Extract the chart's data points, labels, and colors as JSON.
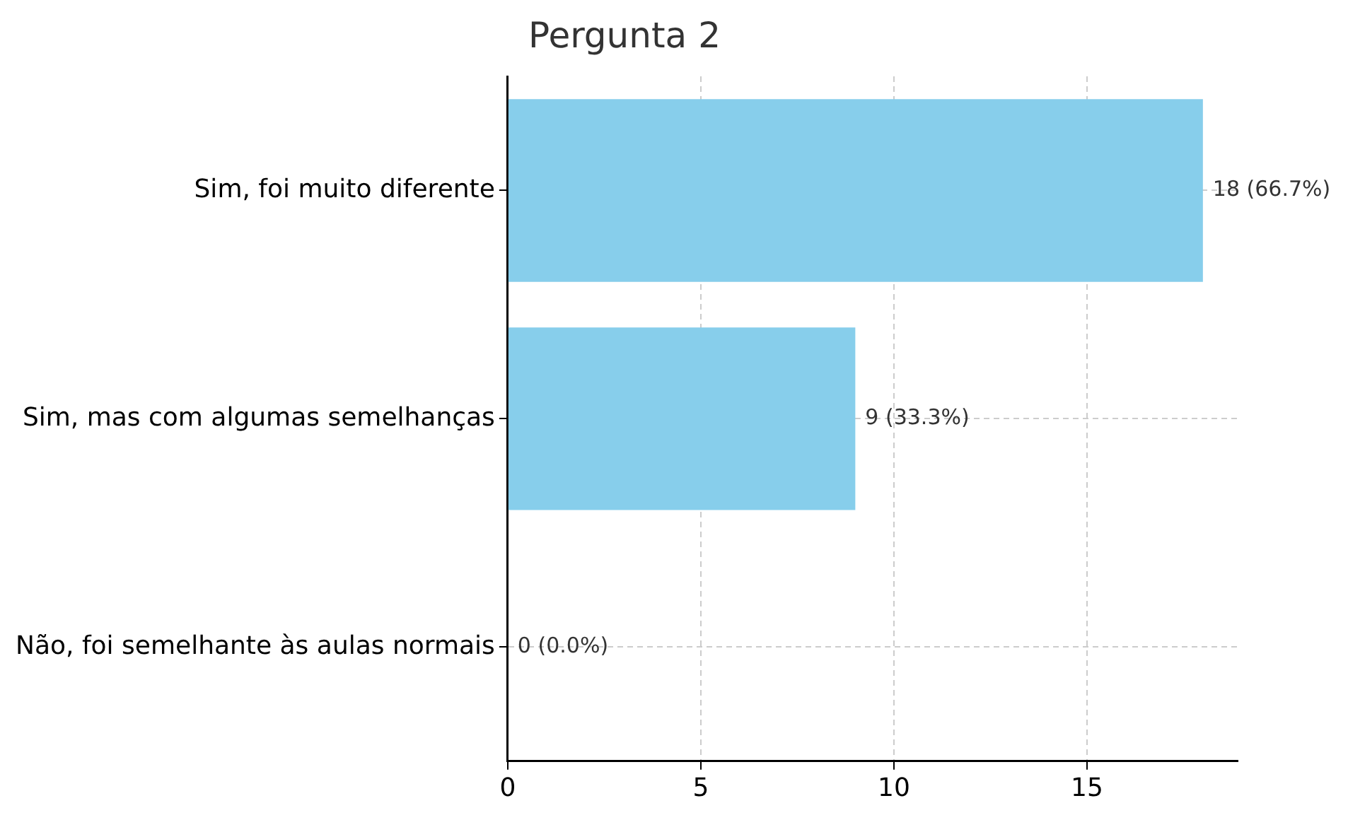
{
  "chart_data": {
    "type": "bar",
    "orientation": "horizontal",
    "title": "Pergunta 2",
    "categories": [
      "Sim, foi muito diferente",
      "Sim, mas com algumas semelhanças",
      "Não, foi semelhante às aulas normais"
    ],
    "values": [
      18,
      9,
      0
    ],
    "value_labels": [
      "18 (66.7%)",
      "9 (33.3%)",
      "0 (0.0%)"
    ],
    "color": "#87ceeb",
    "xlim": [
      0,
      18.9
    ],
    "xticks": [
      0,
      5,
      10,
      15
    ],
    "grid": true,
    "legend": false
  }
}
